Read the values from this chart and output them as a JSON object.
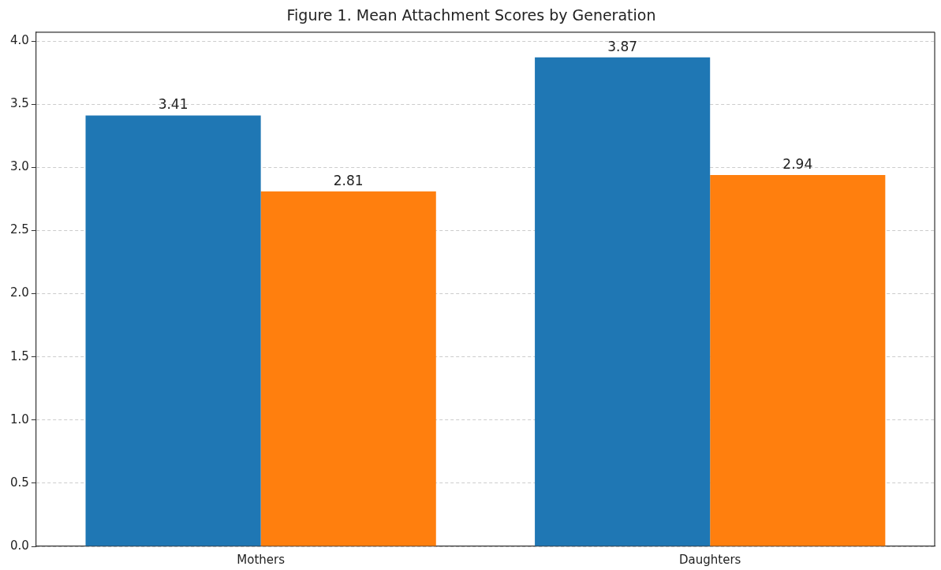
{
  "chart_data": {
    "type": "bar",
    "title": "Figure 1. Mean Attachment Scores by Generation",
    "categories": [
      "Mothers",
      "Daughters"
    ],
    "series": [
      {
        "color": "#1f77b4",
        "values": [
          3.41,
          3.87
        ]
      },
      {
        "color": "#ff7f0e",
        "values": [
          2.81,
          2.94
        ]
      }
    ],
    "ylim": [
      0,
      4.07
    ],
    "yticks": [
      {
        "value": 0,
        "label": "0.0"
      },
      {
        "value": 0.5,
        "label": "0.5"
      },
      {
        "value": 1,
        "label": "1.0"
      },
      {
        "value": 1.5,
        "label": "1.5"
      },
      {
        "value": 2,
        "label": "2.0"
      },
      {
        "value": 2.5,
        "label": "2.5"
      },
      {
        "value": 3,
        "label": "3.0"
      },
      {
        "value": 3.5,
        "label": "3.5"
      },
      {
        "value": 4,
        "label": "4.0"
      }
    ],
    "grid": "y",
    "data_labels": true,
    "legend": false
  }
}
